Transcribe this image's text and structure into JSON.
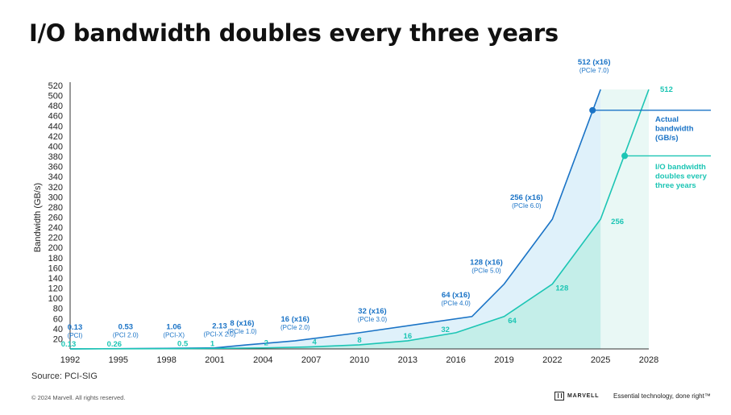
{
  "header": {
    "title": "I/O bandwidth doubles every three years"
  },
  "footer": {
    "source": "Source: PCI-SIG",
    "copyright": "© 2024 Marvell. All rights reserved.",
    "brand": "MARVELL",
    "tagline": "Essential technology, done right™"
  },
  "colors": {
    "actual": "#1a73c6",
    "doubling": "#1cc5b4",
    "actual_fill": "#dff1fa",
    "doubling_fill": "#c4eee9",
    "future_band": "#e9f8f5"
  },
  "chart_data": {
    "type": "line",
    "ylabel": "Bandwidth (GB/s)",
    "ylim": [
      0,
      520
    ],
    "yticks": [
      20,
      40,
      60,
      80,
      100,
      120,
      140,
      160,
      180,
      200,
      220,
      240,
      260,
      280,
      300,
      320,
      340,
      360,
      380,
      400,
      420,
      440,
      460,
      480,
      500,
      520
    ],
    "xlim": [
      1992,
      2028
    ],
    "xticks": [
      1992,
      1995,
      1998,
      2001,
      2004,
      2007,
      2010,
      2013,
      2016,
      2019,
      2022,
      2025,
      2028
    ],
    "series": [
      {
        "name": "Actual bandwidth (GB/s)",
        "key": "actual",
        "points": [
          {
            "x": 1992,
            "y": 0.13,
            "label": "0.13",
            "sublabel": "(PCI)"
          },
          {
            "x": 1995,
            "y": 0.53,
            "label": "0.53",
            "sublabel": "(PCI 2.0)"
          },
          {
            "x": 1998,
            "y": 1.06,
            "label": "1.06",
            "sublabel": "(PCI-X)"
          },
          {
            "x": 2001,
            "y": 2.13,
            "label": "2.13",
            "sublabel": "(PCI-X 2.0)"
          },
          {
            "x": 2003,
            "y": 8,
            "label": "8 (x16)",
            "sublabel": "(PCIe 1.0)"
          },
          {
            "x": 2006,
            "y": 16,
            "label": "16 (x16)",
            "sublabel": "(PCIe 2.0)"
          },
          {
            "x": 2010,
            "y": 32,
            "label": "32 (x16)",
            "sublabel": "(PCIe 3.0)"
          },
          {
            "x": 2017,
            "y": 64,
            "label": "64 (x16)",
            "sublabel": "(PCIe 4.0)"
          },
          {
            "x": 2019,
            "y": 128,
            "label": "128 (x16)",
            "sublabel": "(PCIe 5.0)"
          },
          {
            "x": 2022,
            "y": 256,
            "label": "256 (x16)",
            "sublabel": "(PCIe 6.0)"
          },
          {
            "x": 2025,
            "y": 512,
            "label": "512 (x16)",
            "sublabel": "(PCIe 7.0)"
          }
        ],
        "marker": {
          "x": 2024.5,
          "y": 471
        },
        "legend": "Actual bandwidth (GB/s)",
        "legend_lines": [
          "Actual",
          "bandwidth",
          "(GB/s)"
        ]
      },
      {
        "name": "I/O bandwidth doubles every three years",
        "key": "doubling",
        "points": [
          {
            "x": 1992,
            "y": 0.13,
            "label": "0.13"
          },
          {
            "x": 1995,
            "y": 0.26,
            "label": "0.26"
          },
          {
            "x": 1998,
            "y": 0.5,
            "label": "0.5"
          },
          {
            "x": 2001,
            "y": 1,
            "label": "1"
          },
          {
            "x": 2004,
            "y": 2,
            "label": "2"
          },
          {
            "x": 2007,
            "y": 4,
            "label": "4"
          },
          {
            "x": 2010,
            "y": 8,
            "label": "8"
          },
          {
            "x": 2013,
            "y": 16,
            "label": "16"
          },
          {
            "x": 2016,
            "y": 32,
            "label": "32"
          },
          {
            "x": 2019,
            "y": 64,
            "label": "64"
          },
          {
            "x": 2022,
            "y": 128,
            "label": "128"
          },
          {
            "x": 2025,
            "y": 256,
            "label": "256"
          },
          {
            "x": 2028,
            "y": 512,
            "label": "512"
          }
        ],
        "marker": {
          "x": 2026.5,
          "y": 381
        },
        "legend": "I/O bandwidth doubles every three years",
        "legend_lines": [
          "I/O bandwidth",
          "doubles every",
          "three years"
        ]
      }
    ],
    "legend_position": "right"
  }
}
